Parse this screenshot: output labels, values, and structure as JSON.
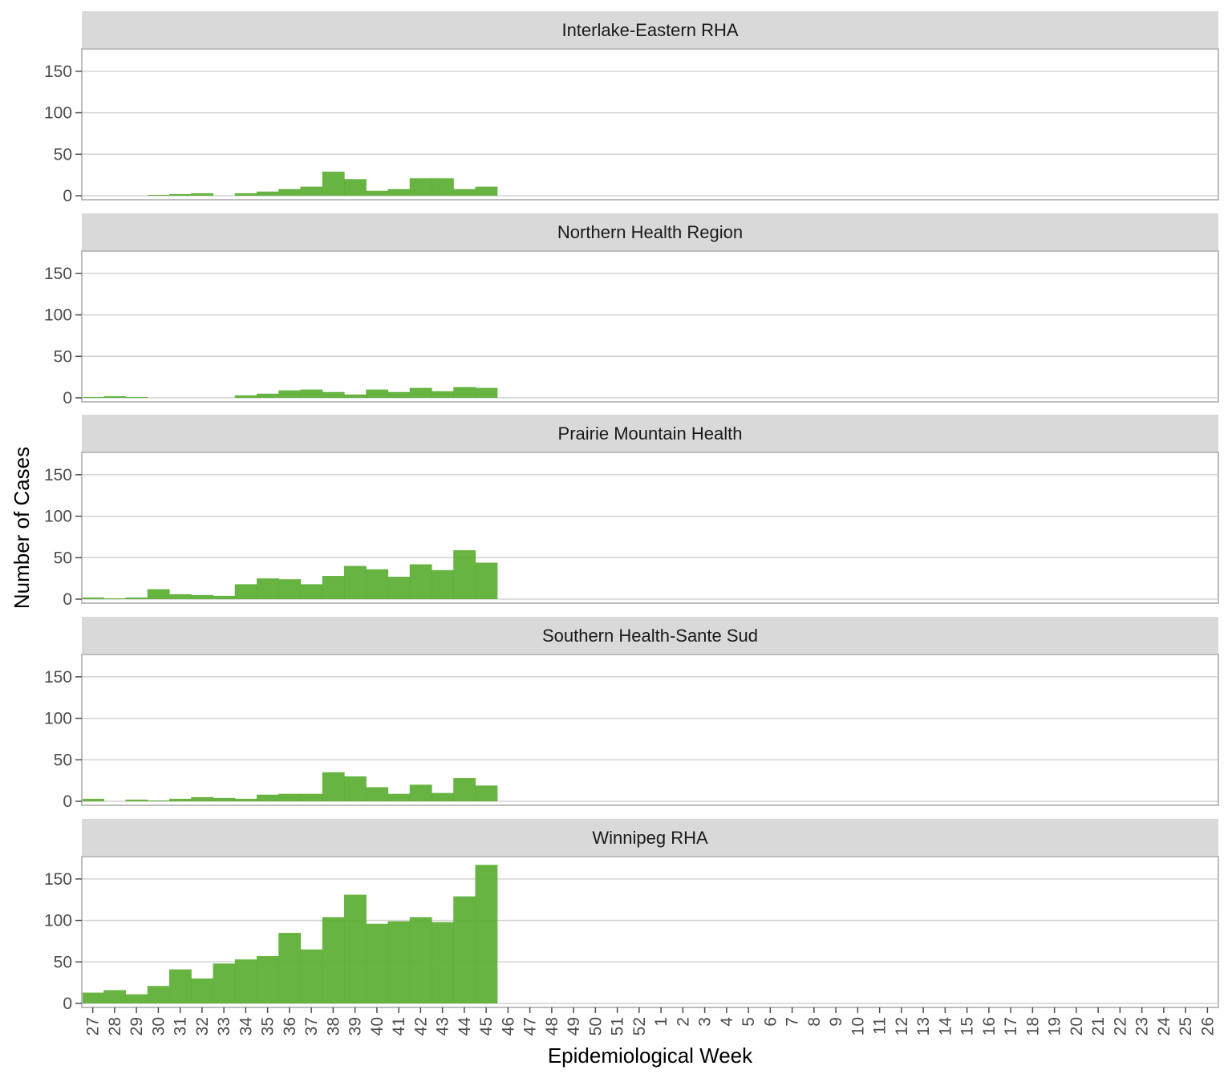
{
  "chart_data": {
    "type": "bar",
    "xlabel": "Epidemiological Week",
    "ylabel": "Number of Cases",
    "ylim": [
      0,
      175
    ],
    "yticks": [
      0,
      50,
      100,
      150
    ],
    "grid": true,
    "bar_color": "#5aae32",
    "strip_fill": "#d9d9d9",
    "panel_border": "#bdbdbd",
    "gridline_color": "#d3d3d3",
    "categories": [
      "27",
      "28",
      "29",
      "30",
      "31",
      "32",
      "33",
      "34",
      "35",
      "36",
      "37",
      "38",
      "39",
      "40",
      "41",
      "42",
      "43",
      "44",
      "45",
      "46",
      "47",
      "48",
      "49",
      "50",
      "51",
      "52",
      "1",
      "2",
      "3",
      "4",
      "5",
      "6",
      "7",
      "8",
      "9",
      "10",
      "11",
      "12",
      "13",
      "14",
      "15",
      "16",
      "17",
      "18",
      "19",
      "20",
      "21",
      "22",
      "23",
      "24",
      "25",
      "26"
    ],
    "panels": [
      {
        "title": "Interlake-Eastern RHA",
        "values": [
          0,
          0,
          0,
          1,
          2,
          3,
          0,
          3,
          5,
          8,
          11,
          29,
          20,
          6,
          8,
          21,
          21,
          8,
          11
        ]
      },
      {
        "title": "Northern Health Region",
        "values": [
          1,
          2,
          1,
          0,
          0,
          0,
          0,
          3,
          5,
          9,
          10,
          7,
          4,
          10,
          7,
          12,
          8,
          13,
          12
        ]
      },
      {
        "title": "Prairie Mountain Health",
        "values": [
          2,
          1,
          2,
          12,
          6,
          5,
          4,
          18,
          25,
          24,
          18,
          28,
          40,
          36,
          27,
          42,
          35,
          59,
          44
        ]
      },
      {
        "title": "Southern Health-Sante Sud",
        "values": [
          3,
          0,
          2,
          1,
          3,
          5,
          4,
          3,
          8,
          9,
          9,
          35,
          30,
          17,
          9,
          20,
          10,
          28,
          19
        ]
      },
      {
        "title": "Winnipeg RHA",
        "values": [
          13,
          16,
          11,
          21,
          41,
          30,
          48,
          53,
          57,
          85,
          65,
          104,
          131,
          96,
          99,
          104,
          98,
          129,
          167
        ]
      }
    ]
  }
}
